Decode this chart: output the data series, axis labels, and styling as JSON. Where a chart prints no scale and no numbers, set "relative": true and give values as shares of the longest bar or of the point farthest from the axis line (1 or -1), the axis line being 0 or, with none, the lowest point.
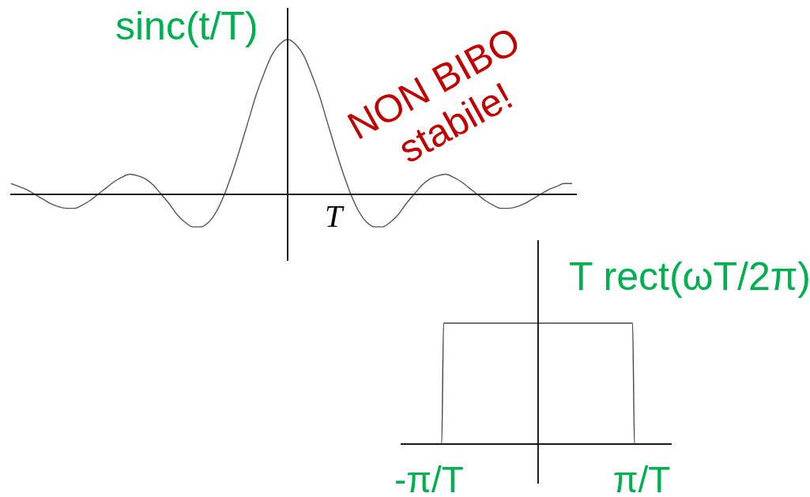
{
  "chart_data": [
    {
      "type": "line",
      "ylabel": "sinc(t/T)",
      "categories": [
        null,
        null,
        null,
        null,
        null,
        null,
        null,
        null,
        null,
        null,
        null,
        null,
        null,
        null,
        null,
        null,
        null,
        null,
        null,
        null,
        null,
        null,
        null,
        null,
        null,
        null,
        null,
        null,
        null,
        null,
        null,
        null,
        null,
        null,
        null,
        null,
        null,
        null,
        null,
        null,
        null,
        null,
        null,
        null,
        null,
        null,
        null,
        null,
        null,
        null,
        null,
        null,
        null,
        null,
        null,
        null,
        null,
        null,
        null,
        null,
        null,
        null,
        null,
        null,
        null,
        null,
        null,
        null,
        null,
        null,
        null,
        null
      ],
      "values": [
        0.07,
        0.05,
        0.03,
        0,
        -0.03,
        -0.06,
        -0.08,
        -0.09,
        -0.09,
        -0.07,
        -0.04,
        0,
        0.04,
        0.08,
        0.11,
        0.13,
        0.12,
        0.1,
        0.06,
        0,
        -0.06,
        -0.13,
        -0.18,
        -0.21,
        -0.21,
        -0.18,
        -0.11,
        0,
        0.14,
        0.3,
        0.47,
        0.64,
        0.78,
        0.9,
        0.97,
        1,
        0.97,
        0.9,
        0.78,
        0.64,
        0.47,
        0.3,
        0.14,
        0,
        -0.11,
        -0.18,
        -0.21,
        -0.21,
        -0.18,
        -0.13,
        -0.06,
        0,
        0.06,
        0.1,
        0.12,
        0.13,
        0.11,
        0.08,
        0.04,
        0,
        -0.04,
        -0.07,
        -0.09,
        -0.09,
        -0.08,
        -0.06,
        -0.03,
        0,
        0.03,
        0.05,
        0.07,
        0.07
      ],
      "color": "#555555",
      "relative": true,
      "marker": "none",
      "annotations": [
        "NON BIBO stabile!",
        "T"
      ]
    },
    {
      "type": "line",
      "ylabel": "T rect(ωT/2π)",
      "categories": [
        null,
        null,
        null,
        null,
        null,
        null,
        null,
        null,
        null,
        null,
        null,
        null,
        null,
        null,
        null,
        null,
        null,
        null,
        null,
        null,
        null,
        null,
        null,
        null,
        null,
        null,
        null,
        null,
        null,
        null,
        null,
        null,
        null,
        null,
        null,
        null,
        null,
        null,
        null,
        null,
        null,
        null,
        null,
        null,
        null,
        null,
        null,
        null,
        null,
        null,
        null,
        null,
        null,
        null,
        null,
        null,
        null,
        null,
        null,
        null,
        null,
        null,
        null,
        null,
        null,
        null,
        null,
        null,
        null,
        null,
        null,
        null,
        null,
        null,
        null,
        null,
        null,
        null,
        null,
        null,
        null,
        null,
        null,
        null,
        null,
        null,
        null,
        null,
        null,
        null,
        null,
        null,
        null,
        null,
        null,
        null,
        null,
        null,
        null,
        null,
        null,
        null,
        null,
        null,
        null,
        null,
        null,
        null,
        null,
        null,
        null,
        null,
        null,
        null,
        null,
        null,
        null,
        null,
        null,
        null,
        null,
        null,
        null,
        null,
        null,
        null,
        null,
        null,
        null,
        null,
        null,
        null,
        null,
        null,
        null,
        null,
        null,
        null,
        null,
        null,
        null,
        null
      ],
      "values": [
        0,
        0,
        0,
        0,
        0,
        0,
        0,
        0,
        0,
        0,
        0,
        0,
        0,
        0,
        0,
        0,
        0,
        0,
        0,
        0,
        0,
        0,
        1,
        1,
        1,
        1,
        1,
        1,
        1,
        1,
        1,
        1,
        1,
        1,
        1,
        1,
        1,
        1,
        1,
        1,
        1,
        1,
        1,
        1,
        1,
        1,
        1,
        1,
        1,
        1,
        1,
        1,
        1,
        1,
        1,
        1,
        1,
        1,
        1,
        1,
        1,
        1,
        1,
        1,
        1,
        1,
        1,
        1,
        1,
        1,
        1,
        1,
        1,
        1,
        1,
        1,
        1,
        1,
        1,
        1,
        1,
        1,
        1,
        1,
        1,
        1,
        1,
        1,
        1,
        1,
        1,
        1,
        1,
        1,
        1,
        1,
        1,
        1,
        1,
        1,
        1,
        1,
        1,
        1,
        1,
        1,
        1,
        1,
        1,
        1,
        1,
        1,
        1,
        1,
        1,
        1,
        1,
        1,
        1,
        1,
        1,
        1,
        0,
        0,
        0,
        0,
        0,
        0,
        0,
        0,
        0,
        0,
        0,
        0,
        0,
        0,
        0,
        0,
        0,
        0,
        0,
        0
      ],
      "color": "#444444",
      "relative": true,
      "marker": "none",
      "annotations": [
        "-π/T",
        "π/T"
      ]
    }
  ]
}
